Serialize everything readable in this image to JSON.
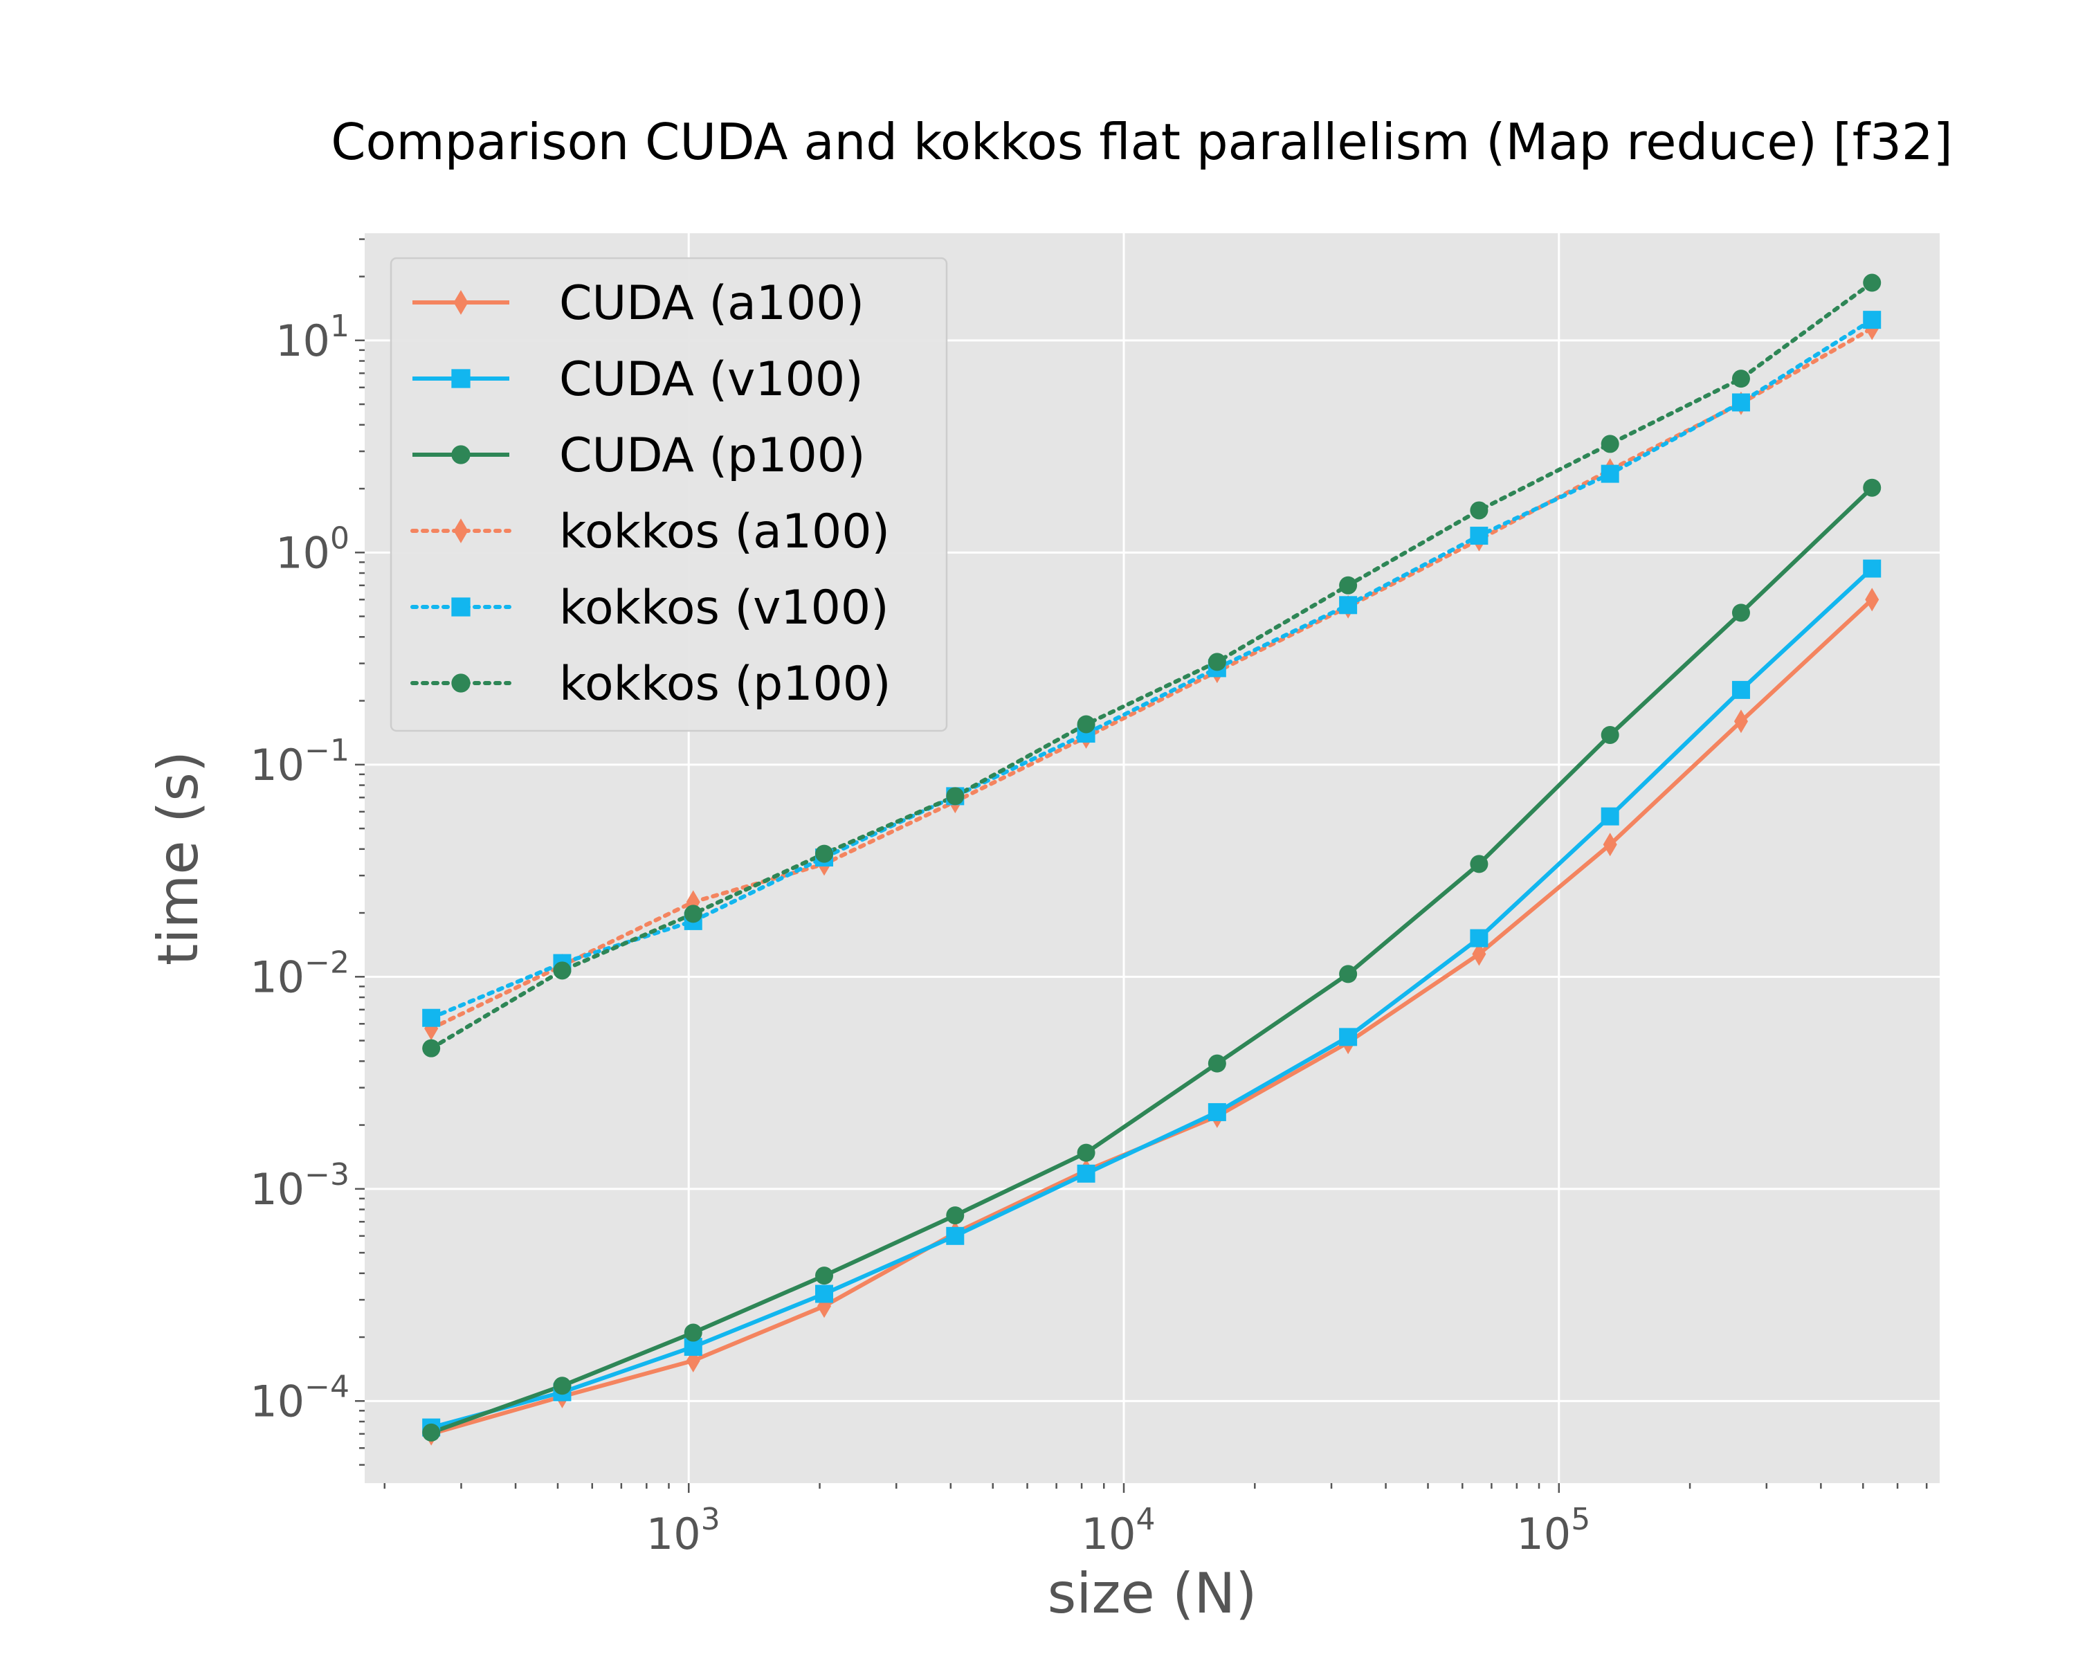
{
  "chart_data": {
    "type": "line",
    "title": "Comparison CUDA and kokkos flat parallelism (Map reduce) [f32]",
    "xlabel": "size (N)",
    "ylabel": "time (s)",
    "xscale": "log",
    "yscale": "log",
    "xlim": [
      180,
      750000
    ],
    "ylim": [
      4.1e-05,
      32
    ],
    "x_ticks": [
      {
        "value": 1000,
        "base": "10",
        "exp": "3"
      },
      {
        "value": 10000,
        "base": "10",
        "exp": "4"
      },
      {
        "value": 100000,
        "base": "10",
        "exp": "5"
      }
    ],
    "y_ticks": [
      {
        "value": 0.0001,
        "base": "10",
        "exp": "−4"
      },
      {
        "value": 0.001,
        "base": "10",
        "exp": "−3"
      },
      {
        "value": 0.01,
        "base": "10",
        "exp": "−2"
      },
      {
        "value": 0.1,
        "base": "10",
        "exp": "−1"
      },
      {
        "value": 1,
        "base": "10",
        "exp": "0"
      },
      {
        "value": 10,
        "base": "10",
        "exp": "1"
      }
    ],
    "grid": true,
    "legend_position": "top-left",
    "x": [
      256,
      512,
      1024,
      2048,
      4096,
      8192,
      16384,
      32768,
      65536,
      131072,
      262144,
      524288
    ],
    "series": [
      {
        "name": "CUDA (a100)",
        "color": "#f4845f",
        "marker": "diamond",
        "dash": "solid",
        "values": [
          7e-05,
          0.000105,
          0.000155,
          0.00028,
          0.00062,
          0.00122,
          0.0022,
          0.0049,
          0.0128,
          0.042,
          0.16,
          0.6
        ]
      },
      {
        "name": "CUDA (v100)",
        "color": "#12b6ef",
        "marker": "square",
        "dash": "solid",
        "values": [
          7.5e-05,
          0.00011,
          0.00018,
          0.00032,
          0.0006,
          0.00118,
          0.0023,
          0.0052,
          0.0152,
          0.057,
          0.225,
          0.84
        ]
      },
      {
        "name": "CUDA (p100)",
        "color": "#2e8656",
        "marker": "circle",
        "dash": "solid",
        "values": [
          7.1e-05,
          0.000118,
          0.00021,
          0.00039,
          0.00075,
          0.00148,
          0.0039,
          0.0103,
          0.034,
          0.138,
          0.52,
          2.02
        ]
      },
      {
        "name": "kokkos (a100)",
        "color": "#f4845f",
        "marker": "diamond",
        "dash": "dotted",
        "values": [
          0.0057,
          0.0113,
          0.0225,
          0.034,
          0.067,
          0.135,
          0.275,
          0.555,
          1.15,
          2.45,
          5.05,
          11.4
        ]
      },
      {
        "name": "kokkos (v100)",
        "color": "#12b6ef",
        "marker": "square",
        "dash": "dotted",
        "values": [
          0.0064,
          0.0116,
          0.0183,
          0.0365,
          0.071,
          0.14,
          0.285,
          0.565,
          1.2,
          2.35,
          5.1,
          12.5
        ]
      },
      {
        "name": "kokkos (p100)",
        "color": "#2e8656",
        "marker": "circle",
        "dash": "dotted",
        "values": [
          0.0046,
          0.0107,
          0.0198,
          0.038,
          0.071,
          0.155,
          0.305,
          0.7,
          1.58,
          3.25,
          6.6,
          18.7
        ]
      }
    ]
  }
}
